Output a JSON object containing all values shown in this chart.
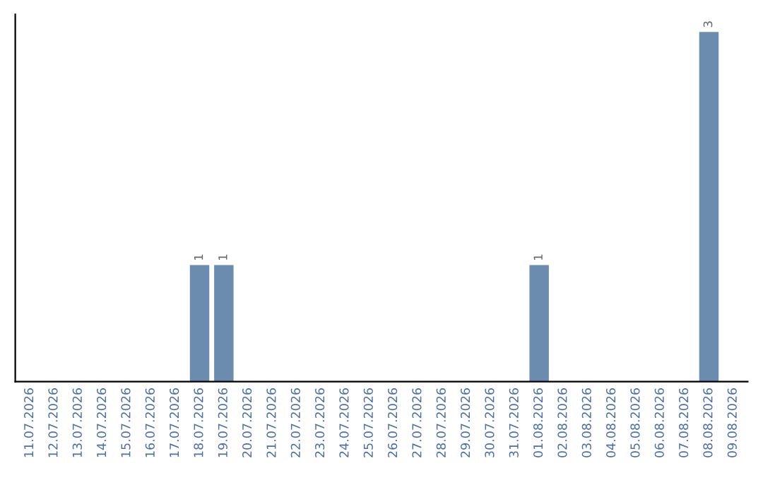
{
  "chart_data": {
    "type": "bar",
    "categories": [
      "11.07.2026",
      "12.07.2026",
      "13.07.2026",
      "14.07.2026",
      "15.07.2026",
      "16.07.2026",
      "17.07.2026",
      "18.07.2026",
      "19.07.2026",
      "20.07.2026",
      "21.07.2026",
      "22.07.2026",
      "23.07.2026",
      "24.07.2026",
      "25.07.2026",
      "26.07.2026",
      "27.07.2026",
      "28.07.2026",
      "29.07.2026",
      "30.07.2026",
      "31.07.2026",
      "01.08.2026",
      "02.08.2026",
      "03.08.2026",
      "04.08.2026",
      "05.08.2026",
      "06.08.2026",
      "07.08.2026",
      "08.08.2026",
      "09.08.2026"
    ],
    "values": [
      0,
      0,
      0,
      0,
      0,
      0,
      0,
      1,
      1,
      0,
      0,
      0,
      0,
      0,
      0,
      0,
      0,
      0,
      0,
      0,
      0,
      1,
      0,
      0,
      0,
      0,
      0,
      0,
      3,
      0
    ],
    "color": "#6b8cae",
    "value_labels": [
      null,
      null,
      null,
      null,
      null,
      null,
      null,
      "1",
      "1",
      null,
      null,
      null,
      null,
      null,
      null,
      null,
      null,
      null,
      null,
      null,
      null,
      "1",
      null,
      null,
      null,
      null,
      null,
      null,
      "3",
      null
    ],
    "tick_labels": "x",
    "grid": false,
    "legend": false
  }
}
